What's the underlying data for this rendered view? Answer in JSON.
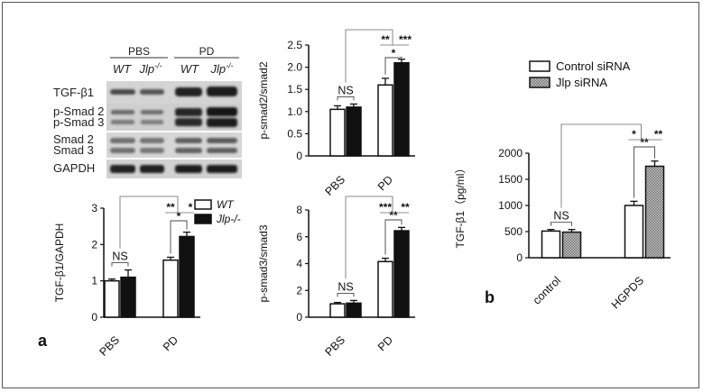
{
  "panel_labels": {
    "a": "a",
    "b": "b"
  },
  "blot": {
    "groups": [
      "PBS",
      "PD"
    ],
    "lanes": [
      "WT",
      "Jlp",
      "WT",
      "Jlp"
    ],
    "lane_sup": "-/-",
    "rows": [
      "TGF-β1",
      "p-Smad 2",
      "p-Smad 3",
      "Smad 2",
      "Smad 3",
      "GAPDH"
    ]
  },
  "chart_data": [
    {
      "id": "smad2",
      "type": "bar",
      "ylabel": "p-smad2/smad2",
      "categories": [
        "PBS",
        "PD"
      ],
      "ylim": [
        0,
        2.5
      ],
      "yticks": [
        0,
        0.5,
        1.0,
        1.5,
        2.0,
        2.5
      ],
      "ytick_labels": [
        "0",
        "0.5",
        "1.0",
        "1.5",
        "2.0",
        "2.5"
      ],
      "series": [
        {
          "values": [
            1.05,
            1.6
          ],
          "errors": [
            0.08,
            0.15
          ]
        },
        {
          "values": [
            1.1,
            2.1
          ],
          "errors": [
            0.07,
            0.08
          ]
        }
      ],
      "annotations": {
        "ns": "NS",
        "within_pd": "*",
        "cross_wt": "**",
        "cross_ko": "***"
      }
    },
    {
      "id": "tgf",
      "type": "bar",
      "ylabel": "TGF-β1/GAPDH",
      "categories": [
        "PBS",
        "PD"
      ],
      "ylim": [
        0,
        3
      ],
      "yticks": [
        0,
        1,
        2,
        3
      ],
      "ytick_labels": [
        "0",
        "1",
        "2",
        "3"
      ],
      "series": [
        {
          "name": "WT",
          "values": [
            1.0,
            1.57
          ],
          "errors": [
            0.05,
            0.08
          ]
        },
        {
          "name": "Jlp-/-",
          "values": [
            1.1,
            2.22
          ],
          "errors": [
            0.2,
            0.12
          ]
        }
      ],
      "annotations": {
        "ns": "NS",
        "within_pd": "*",
        "cross_wt": "**",
        "cross_ko": "*"
      }
    },
    {
      "id": "smad3",
      "type": "bar",
      "ylabel": "p-smad3/smad3",
      "categories": [
        "PBS",
        "PD"
      ],
      "ylim": [
        0,
        8
      ],
      "yticks": [
        0,
        2,
        4,
        6,
        8
      ],
      "ytick_labels": [
        "0",
        "2",
        "4",
        "6",
        "8"
      ],
      "series": [
        {
          "values": [
            1.0,
            4.15
          ],
          "errors": [
            0.1,
            0.25
          ]
        },
        {
          "values": [
            1.05,
            6.45
          ],
          "errors": [
            0.2,
            0.25
          ]
        }
      ],
      "annotations": {
        "ns": "NS",
        "within_pd": "**",
        "cross_wt": "***",
        "cross_ko": "**"
      }
    },
    {
      "id": "elisa",
      "type": "bar",
      "ylabel": "TGF-β1（pg/ml）",
      "categories": [
        "control",
        "HGPDS"
      ],
      "ylim": [
        0,
        2000
      ],
      "yticks": [
        0,
        500,
        1000,
        1500,
        2000
      ],
      "ytick_labels": [
        "0",
        "500",
        "1000",
        "1500",
        "2000"
      ],
      "series": [
        {
          "name": "Control siRNA",
          "values": [
            510,
            1000
          ],
          "errors": [
            30,
            80
          ]
        },
        {
          "name": "Jlp siRNA",
          "values": [
            490,
            1750
          ],
          "errors": [
            50,
            100
          ]
        }
      ],
      "annotations": {
        "ns": "NS",
        "within_pd": "**",
        "cross_wt": "*",
        "cross_ko": "**"
      }
    }
  ]
}
